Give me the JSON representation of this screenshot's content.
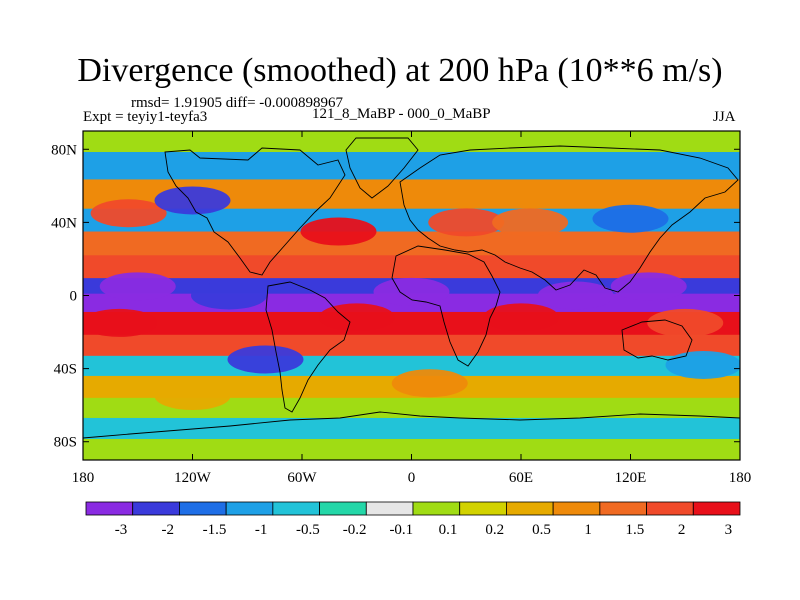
{
  "chart_data": {
    "type": "heatmap",
    "title": "Divergence (smoothed) at 200 hPa (10**6 m/s)",
    "stats": "rmsd= 1.91905 diff= -0.000898967",
    "experiment": "Expt = teyiy1-teyfa3",
    "difference_case": "121_8_MaBP - 000_0_MaBP",
    "season": "JJA",
    "x_axis": {
      "range": [
        -180,
        180
      ],
      "ticks": [
        {
          "value": -180,
          "label": "180"
        },
        {
          "value": -120,
          "label": "120W"
        },
        {
          "value": -60,
          "label": "60W"
        },
        {
          "value": 0,
          "label": "0"
        },
        {
          "value": 60,
          "label": "60E"
        },
        {
          "value": 120,
          "label": "120E"
        },
        {
          "value": 180,
          "label": "180"
        }
      ]
    },
    "y_axis": {
      "range": [
        -90,
        90
      ],
      "ticks": [
        {
          "value": 80,
          "label": "80N"
        },
        {
          "value": 40,
          "label": "40N"
        },
        {
          "value": 0,
          "label": "0"
        },
        {
          "value": -40,
          "label": "40S"
        },
        {
          "value": -80,
          "label": "80S"
        }
      ]
    },
    "colorbar": {
      "colors": [
        "#8a2be2",
        "#3a3adb",
        "#1e6ee6",
        "#1ea0e6",
        "#22c3d8",
        "#24d7a8",
        "#e6e6e6",
        "#a0dc14",
        "#d2d200",
        "#e6aa00",
        "#ee8a0a",
        "#f06a22",
        "#f04a2a",
        "#e8101a"
      ],
      "labels": [
        "-3",
        "-2",
        "-1.5",
        "-1",
        "-0.5",
        "-0.2",
        "-0.1",
        "0.1",
        "0.2",
        "0.5",
        "1",
        "1.5",
        "2",
        "3"
      ]
    },
    "bands": [
      {
        "lat": 85,
        "value": 0.1
      },
      {
        "lat": 72,
        "value": -0.8
      },
      {
        "lat": 55,
        "value": 0.9
      },
      {
        "lat": 40,
        "value": -1.2
      },
      {
        "lat": 30,
        "value": 1.6
      },
      {
        "lat": 14,
        "value": 2.2
      },
      {
        "lat": 5,
        "value": -1.8
      },
      {
        "lat": -3,
        "value": -2.6
      },
      {
        "lat": -15,
        "value": 2.6
      },
      {
        "lat": -28,
        "value": 1.8
      },
      {
        "lat": -38,
        "value": -0.6
      },
      {
        "lat": -50,
        "value": 0.6
      },
      {
        "lat": -62,
        "value": 0.1
      },
      {
        "lat": -72,
        "value": -0.4
      },
      {
        "lat": -85,
        "value": 0.05
      }
    ],
    "features": [
      {
        "lon": -150,
        "lat": 5,
        "value": -3.2
      },
      {
        "lon": -100,
        "lat": 0,
        "value": -2.5
      },
      {
        "lon": 0,
        "lat": 2,
        "value": -2.6
      },
      {
        "lon": 90,
        "lat": 0,
        "value": -3.1
      },
      {
        "lon": 130,
        "lat": 5,
        "value": -2.8
      },
      {
        "lon": -155,
        "lat": 45,
        "value": 2.4
      },
      {
        "lon": -120,
        "lat": 52,
        "value": -2.2
      },
      {
        "lon": -40,
        "lat": 35,
        "value": 2.6
      },
      {
        "lon": 30,
        "lat": 40,
        "value": 2.2
      },
      {
        "lon": 65,
        "lat": 40,
        "value": 1.6
      },
      {
        "lon": 120,
        "lat": 42,
        "value": -1.6
      },
      {
        "lon": -160,
        "lat": -15,
        "value": 2.8
      },
      {
        "lon": -30,
        "lat": -12,
        "value": 3.1
      },
      {
        "lon": 60,
        "lat": -12,
        "value": 2.9
      },
      {
        "lon": 150,
        "lat": -15,
        "value": 2.4
      },
      {
        "lon": -80,
        "lat": -35,
        "value": -1.8
      },
      {
        "lon": 160,
        "lat": -38,
        "value": -1.2
      },
      {
        "lon": 10,
        "lat": -48,
        "value": 1.2
      },
      {
        "lon": -120,
        "lat": -55,
        "value": 0.7
      }
    ]
  }
}
